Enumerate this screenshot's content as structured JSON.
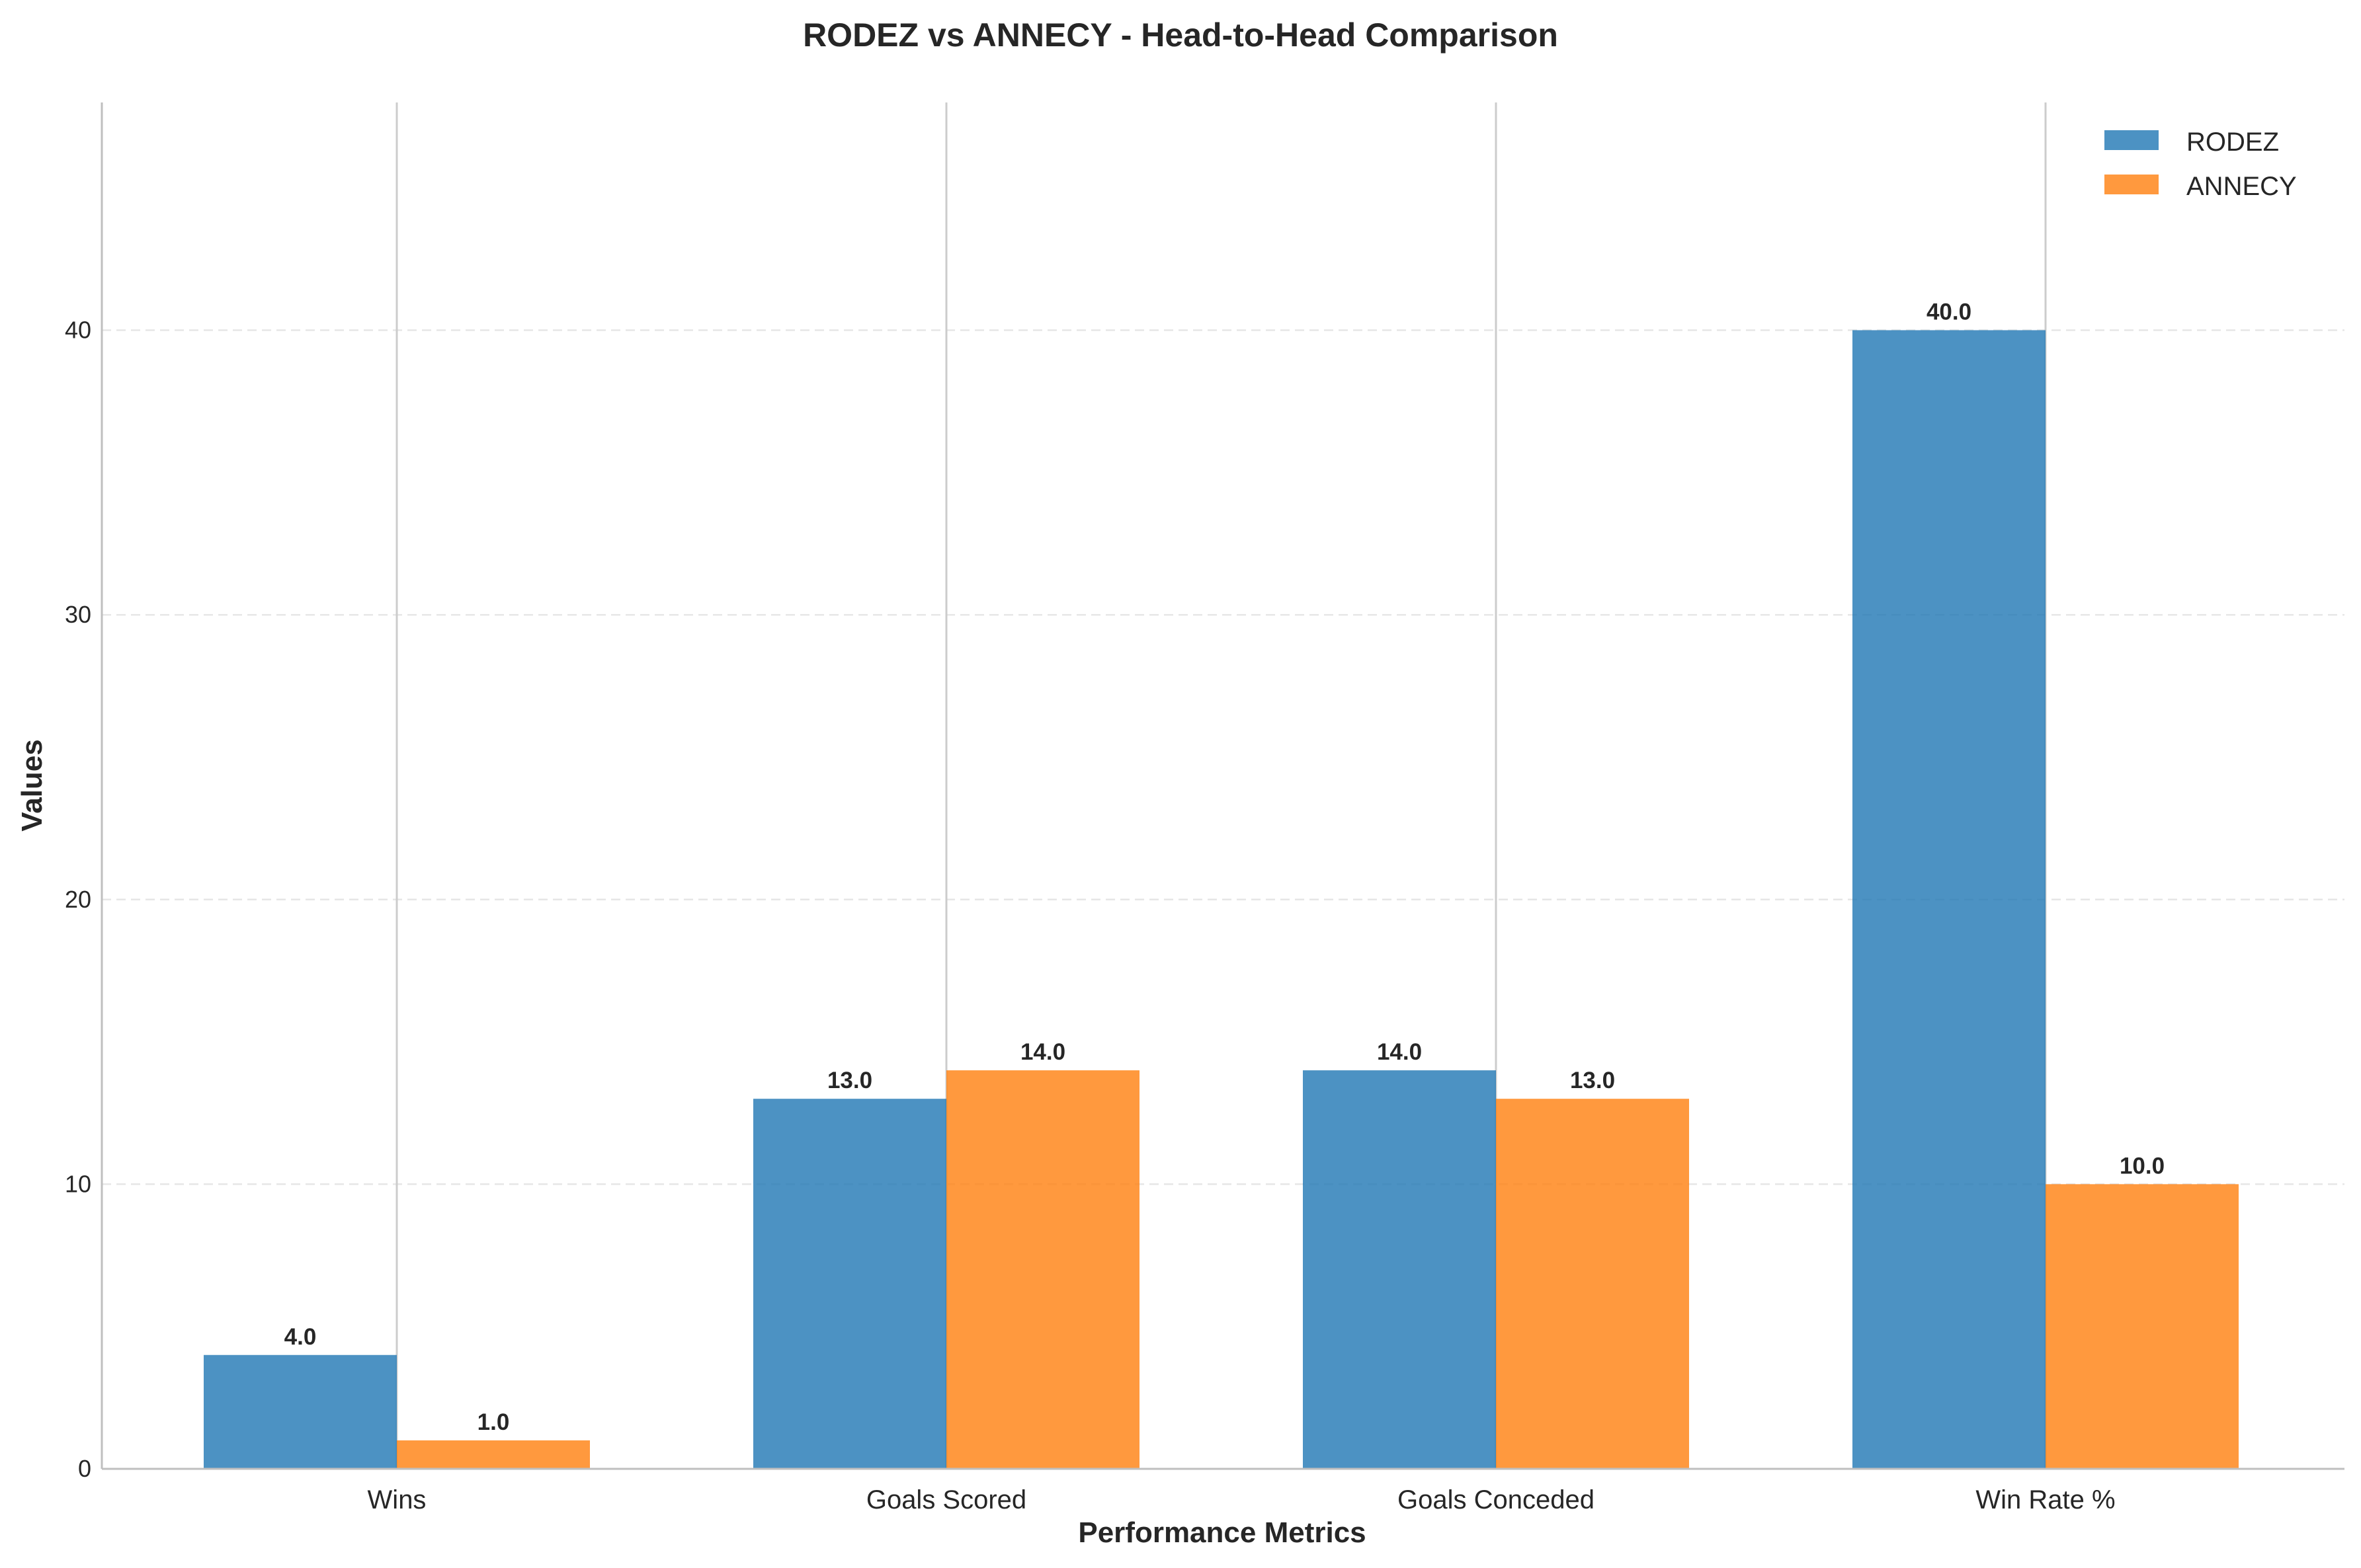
{
  "chart_data": {
    "type": "bar",
    "title": "RODEZ vs ANNECY - Head-to-Head Comparison",
    "xlabel": "Performance Metrics",
    "ylabel": "Values",
    "categories": [
      "Wins",
      "Goals Scored",
      "Goals Conceded",
      "Win Rate %"
    ],
    "series": [
      {
        "name": "RODEZ",
        "values": [
          4.0,
          13.0,
          14.0,
          40.0
        ],
        "color": "#1f77b4"
      },
      {
        "name": "ANNECY",
        "values": [
          1.0,
          14.0,
          13.0,
          10.0
        ],
        "color": "#ff7f0e"
      }
    ],
    "value_labels": {
      "RODEZ": [
        "4.0",
        "13.0",
        "14.0",
        "40.0"
      ],
      "ANNECY": [
        "1.0",
        "14.0",
        "13.0",
        "10.0"
      ]
    },
    "ylim": [
      0,
      48
    ],
    "yticks": [
      0,
      10,
      20,
      30,
      40
    ],
    "ytick_labels": [
      "0",
      "10",
      "20",
      "30",
      "40"
    ],
    "grid": "y dashed",
    "legend_position": "top-right"
  }
}
